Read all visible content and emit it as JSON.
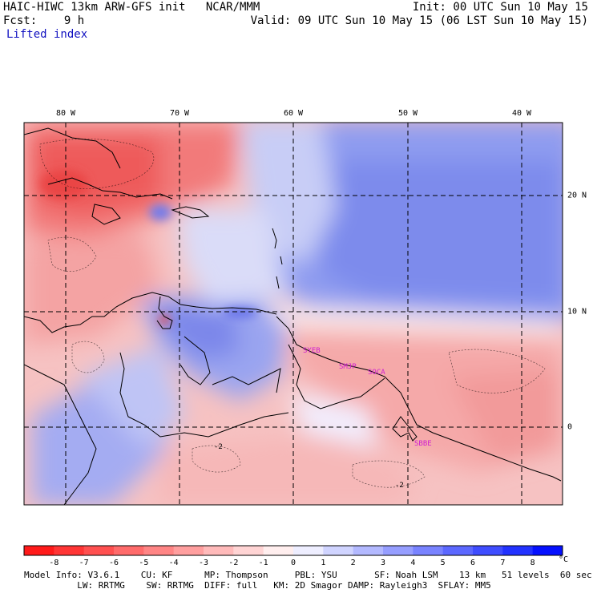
{
  "header": {
    "title_left": "HAIC-HIWC 13km ARW-GFS init   NCAR/MMM",
    "init": "Init: 00 UTC Sun 10 May 15",
    "fcst": "Fcst:    9 h",
    "valid": "Valid: 09 UTC Sun 10 May 15 (06 LST Sun 10 May 15)",
    "field": "Lifted index"
  },
  "map": {
    "lon_labels": [
      "80 W",
      "70 W",
      "60 W",
      "50 W",
      "40 W"
    ],
    "lat_labels": [
      "20 N",
      "10 N",
      "0"
    ],
    "stations": [
      "SYEB",
      "SMJP",
      "SOCA",
      "SBBE"
    ],
    "contour_labels": [
      "-2",
      "-2"
    ]
  },
  "colorbar": {
    "ticks": [
      "-8",
      "-7",
      "-6",
      "-5",
      "-4",
      "-3",
      "-2",
      "-1",
      "0",
      "1",
      "2",
      "3",
      "4",
      "5",
      "6",
      "7",
      "8"
    ],
    "unit": "°C",
    "colors": [
      "#ff1a1a",
      "#ff3535",
      "#ff5050",
      "#ff6b6b",
      "#ff8585",
      "#ff9f9f",
      "#ffbaba",
      "#ffd4d4",
      "#ffeeee",
      "#eeeeff",
      "#d0d4ff",
      "#b3b9ff",
      "#969eff",
      "#7983ff",
      "#5c68ff",
      "#3f4dff",
      "#2232ff",
      "#0510ff"
    ]
  },
  "model_info": {
    "line1": "Model Info: V3.6.1    CU: KF      MP: Thompson     PBL: YSU       SF: Noah LSM    13 km   51 levels  60 sec",
    "line2": "          LW: RRTMG    SW: RRTMG  DIFF: full   KM: 2D Smagor DAMP: Rayleigh3  SFLAY: MM5"
  }
}
